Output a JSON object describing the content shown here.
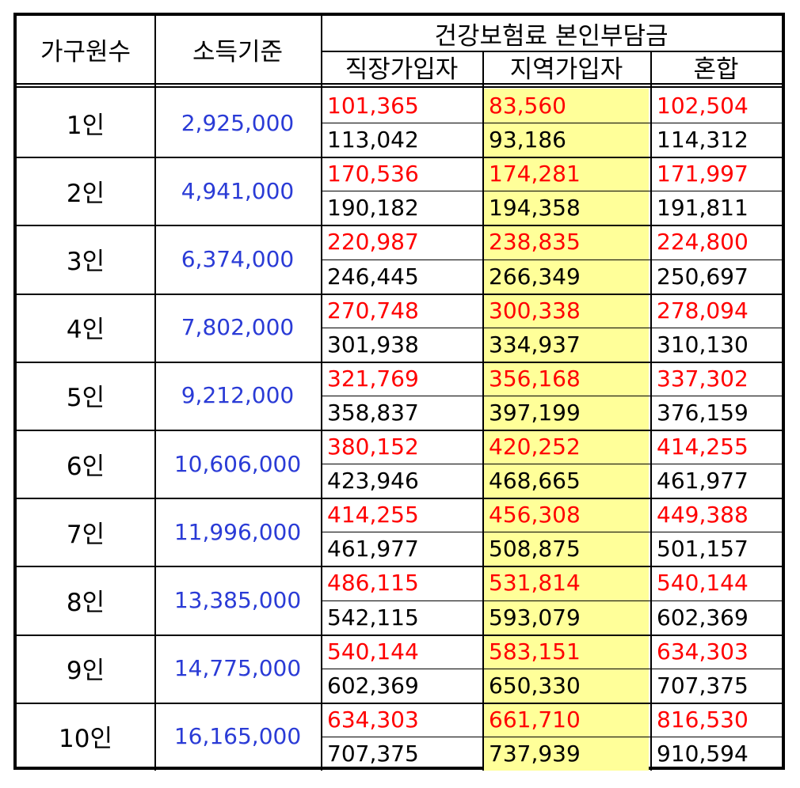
{
  "headers": {
    "household": "가구원수",
    "income": "소득기준",
    "premium_group": "건강보험료 본인부담금",
    "employee": "직장가입자",
    "regional": "지역가입자",
    "mixed": "혼합"
  },
  "colors": {
    "income_text": "#2a3bd6",
    "upper_value_text": "#ff0000",
    "lower_value_text": "#000000",
    "highlight_column": "#ffff99"
  },
  "rows": [
    {
      "household": "1인",
      "income": "2,925,000",
      "employee": [
        "101,365",
        "113,042"
      ],
      "regional": [
        "83,560",
        "93,186"
      ],
      "mixed": [
        "102,504",
        "114,312"
      ]
    },
    {
      "household": "2인",
      "income": "4,941,000",
      "employee": [
        "170,536",
        "190,182"
      ],
      "regional": [
        "174,281",
        "194,358"
      ],
      "mixed": [
        "171,997",
        "191,811"
      ]
    },
    {
      "household": "3인",
      "income": "6,374,000",
      "employee": [
        "220,987",
        "246,445"
      ],
      "regional": [
        "238,835",
        "266,349"
      ],
      "mixed": [
        "224,800",
        "250,697"
      ]
    },
    {
      "household": "4인",
      "income": "7,802,000",
      "employee": [
        "270,748",
        "301,938"
      ],
      "regional": [
        "300,338",
        "334,937"
      ],
      "mixed": [
        "278,094",
        "310,130"
      ]
    },
    {
      "household": "5인",
      "income": "9,212,000",
      "employee": [
        "321,769",
        "358,837"
      ],
      "regional": [
        "356,168",
        "397,199"
      ],
      "mixed": [
        "337,302",
        "376,159"
      ]
    },
    {
      "household": "6인",
      "income": "10,606,000",
      "employee": [
        "380,152",
        "423,946"
      ],
      "regional": [
        "420,252",
        "468,665"
      ],
      "mixed": [
        "414,255",
        "461,977"
      ]
    },
    {
      "household": "7인",
      "income": "11,996,000",
      "employee": [
        "414,255",
        "461,977"
      ],
      "regional": [
        "456,308",
        "508,875"
      ],
      "mixed": [
        "449,388",
        "501,157"
      ]
    },
    {
      "household": "8인",
      "income": "13,385,000",
      "employee": [
        "486,115",
        "542,115"
      ],
      "regional": [
        "531,814",
        "593,079"
      ],
      "mixed": [
        "540,144",
        "602,369"
      ]
    },
    {
      "household": "9인",
      "income": "14,775,000",
      "employee": [
        "540,144",
        "602,369"
      ],
      "regional": [
        "583,151",
        "650,330"
      ],
      "mixed": [
        "634,303",
        "707,375"
      ]
    },
    {
      "household": "10인",
      "income": "16,165,000",
      "employee": [
        "634,303",
        "707,375"
      ],
      "regional": [
        "661,710",
        "737,939"
      ],
      "mixed": [
        "816,530",
        "910,594"
      ]
    }
  ]
}
